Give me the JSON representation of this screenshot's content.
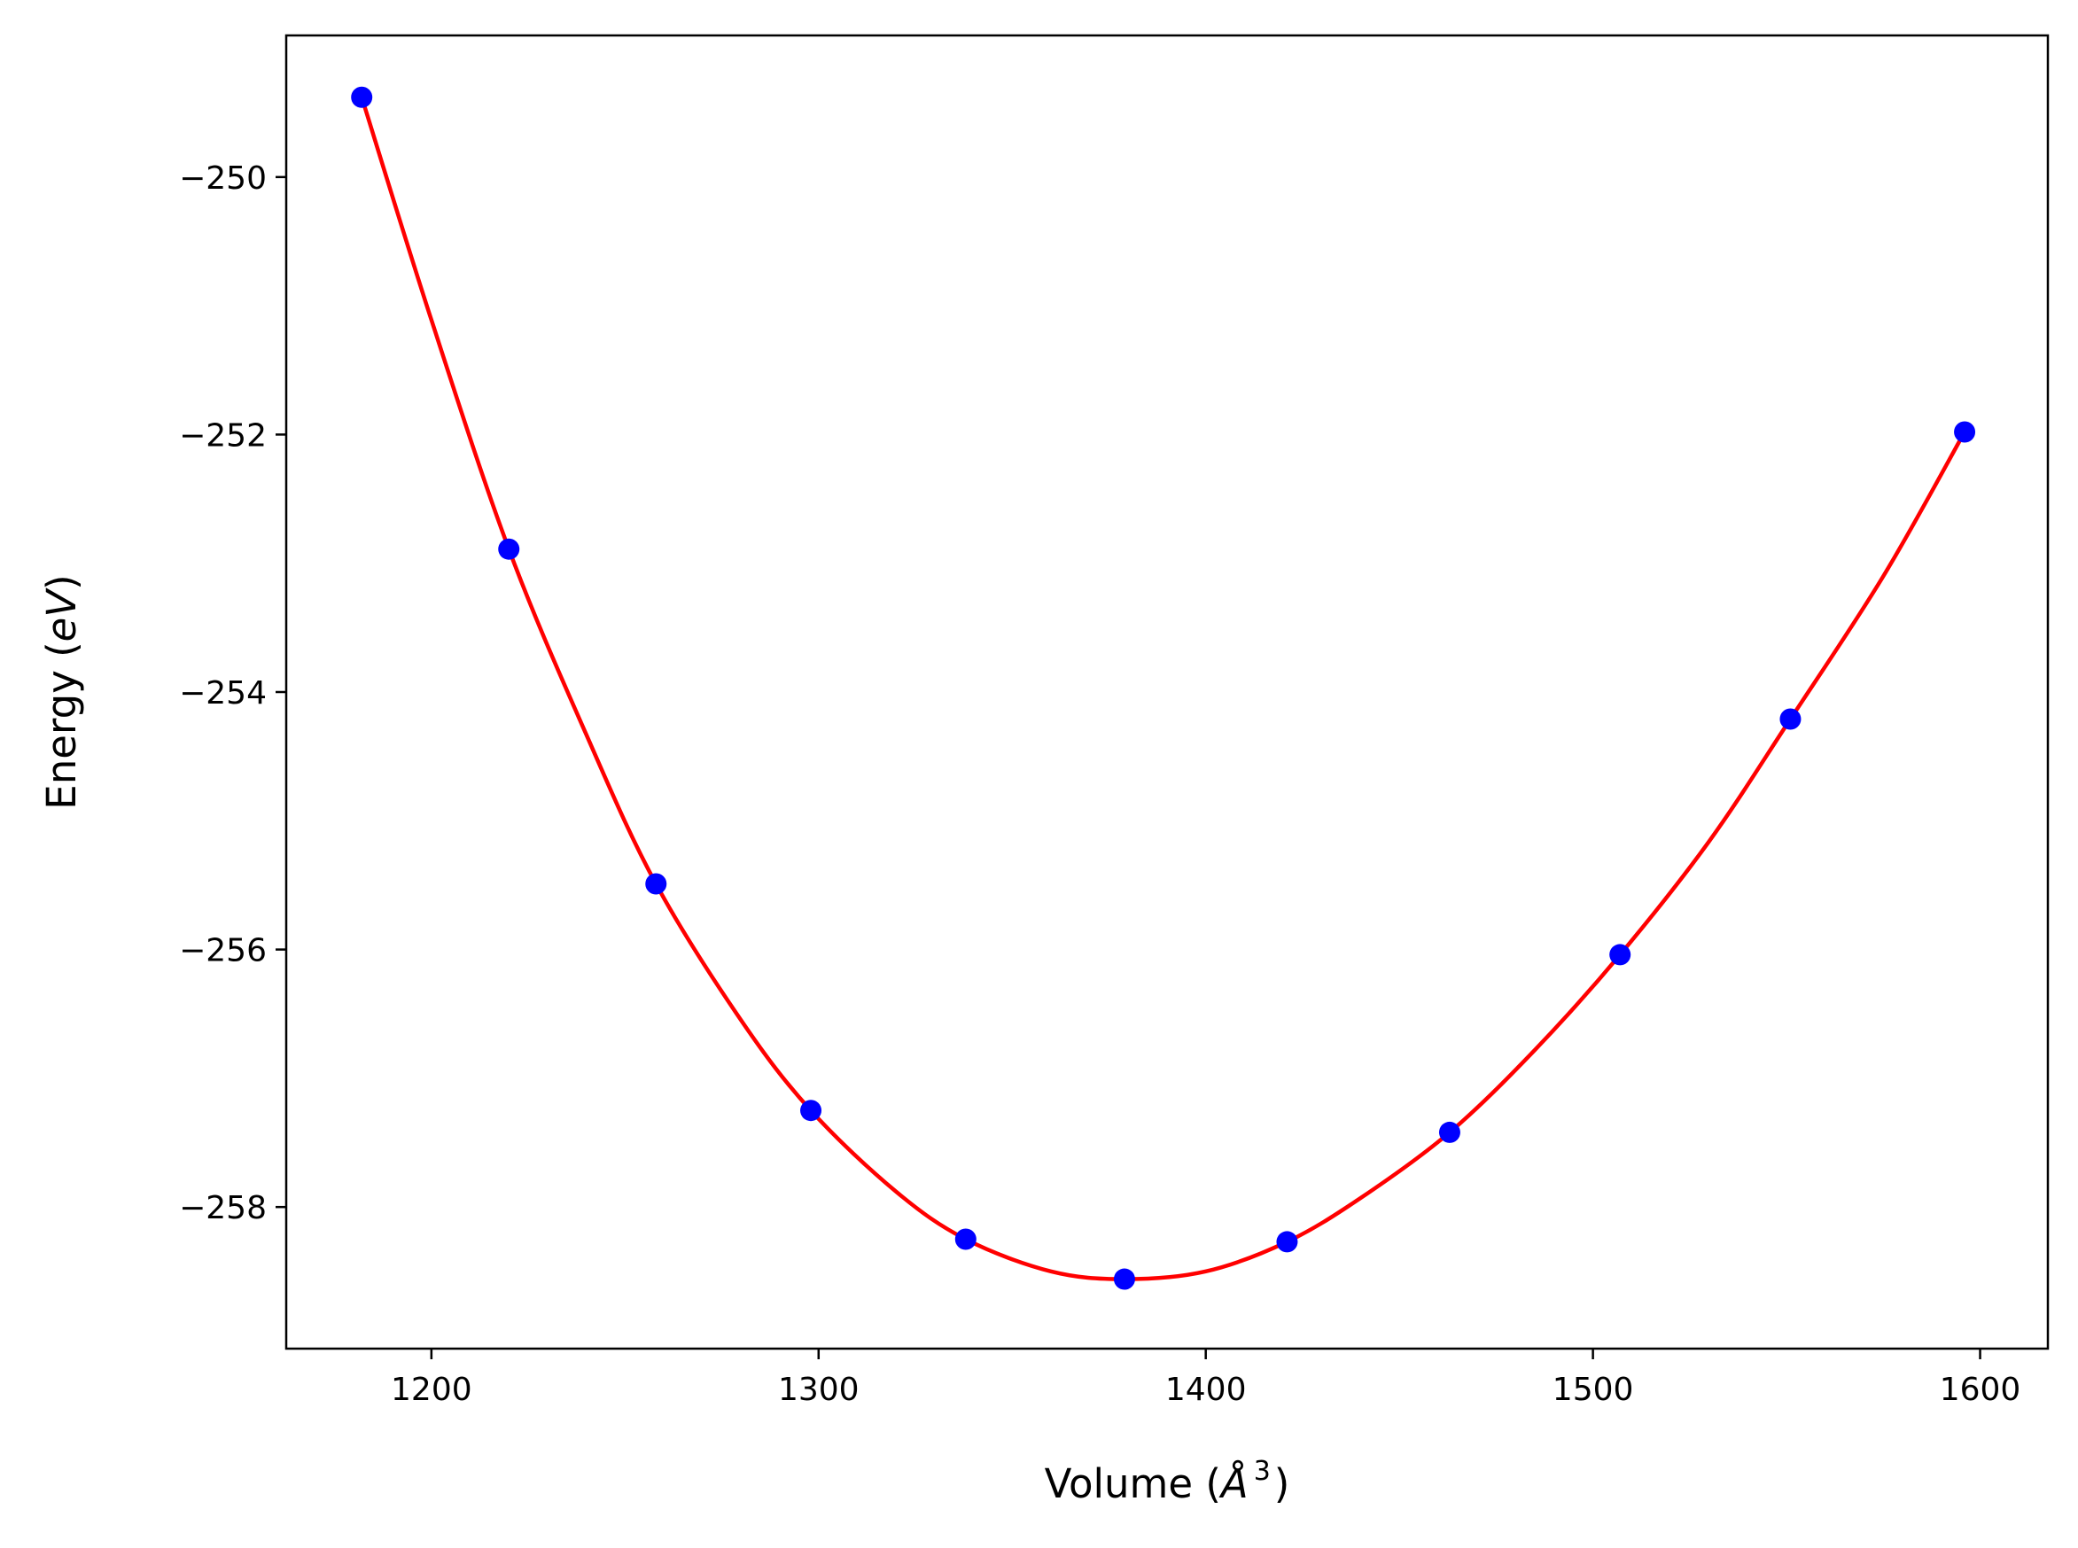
{
  "chart_data": {
    "type": "scatter",
    "title": "",
    "xlabel_parts": {
      "prefix": "Volume (",
      "symbol": "Å",
      "exponent": "3",
      "suffix": ")"
    },
    "ylabel_parts": {
      "prefix": "Energy (",
      "unit": "eV",
      "suffix": ")"
    },
    "xlim": [
      1162.5,
      1617.5
    ],
    "ylim": [
      -259.1,
      -248.9
    ],
    "xticks": [
      1200,
      1300,
      1400,
      1500,
      1600
    ],
    "yticks": [
      -250,
      -252,
      -254,
      -256,
      -258
    ],
    "xtick_labels": [
      "1200",
      "1300",
      "1400",
      "1500",
      "1600"
    ],
    "ytick_labels": [
      "−250",
      "−252",
      "−254",
      "−256",
      "−258"
    ],
    "grid": false,
    "series": [
      {
        "kind": "points",
        "color": "#0000ff",
        "x": [
          1182,
          1220,
          1258,
          1298,
          1338,
          1379,
          1421,
          1463,
          1507,
          1551,
          1596
        ],
        "y": [
          -249.38,
          -252.89,
          -255.49,
          -257.25,
          -258.25,
          -258.56,
          -258.27,
          -257.42,
          -256.04,
          -254.21,
          -251.98
        ]
      },
      {
        "kind": "fit-curve",
        "color": "#ff0000",
        "x": [
          1182,
          1200,
          1220,
          1240,
          1258,
          1280,
          1298,
          1320,
          1338,
          1360,
          1379,
          1400,
          1421,
          1440,
          1463,
          1485,
          1507,
          1530,
          1551,
          1575,
          1596
        ],
        "y": [
          -249.38,
          -251.11,
          -252.89,
          -254.33,
          -255.49,
          -256.55,
          -257.25,
          -257.88,
          -258.25,
          -258.5,
          -258.56,
          -258.5,
          -258.27,
          -257.93,
          -257.42,
          -256.78,
          -256.04,
          -255.16,
          -254.21,
          -253.1,
          -251.98
        ]
      }
    ]
  }
}
